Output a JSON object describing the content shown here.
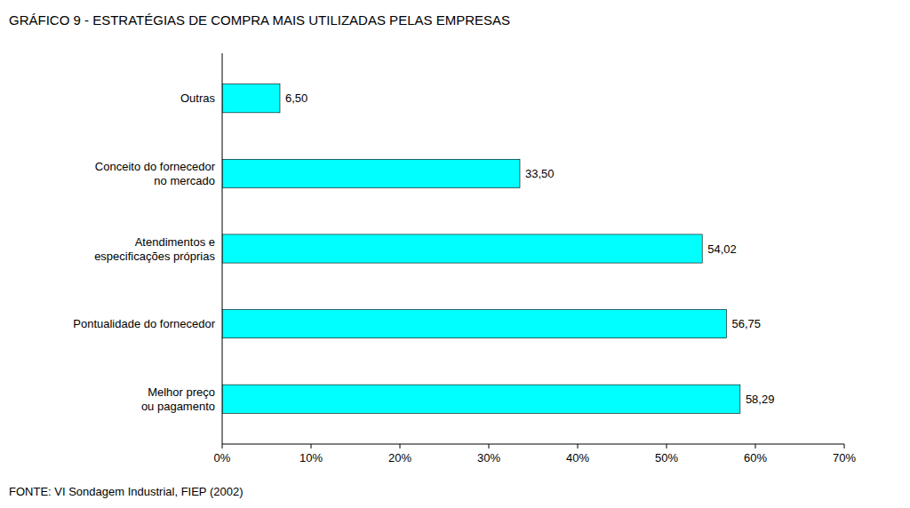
{
  "chart_data": {
    "type": "bar",
    "orientation": "horizontal",
    "title": "GRÁFICO 9 - ESTRATÉGIAS DE COMPRA MAIS UTILIZADAS PELAS EMPRESAS",
    "categories": [
      "Melhor preço\nou pagamento",
      "Pontualidade do fornecedor",
      "Atendimentos e\nespecificações próprias",
      "Conceito do fornecedor\nno mercado",
      "Outras"
    ],
    "values": [
      58.29,
      56.75,
      54.02,
      33.5,
      6.5
    ],
    "value_labels": [
      "58,29",
      "56,75",
      "54,02",
      "33,50",
      "6,50"
    ],
    "data_labels": true,
    "color": "#00FFFF",
    "xlim": [
      0,
      70
    ],
    "xticks": [
      {
        "value": 0,
        "label": "0%"
      },
      {
        "value": 10,
        "label": "10%"
      },
      {
        "value": 20,
        "label": "20%"
      },
      {
        "value": 30,
        "label": "30%"
      },
      {
        "value": 40,
        "label": "40%"
      },
      {
        "value": 50,
        "label": "50%"
      },
      {
        "value": 60,
        "label": "60%"
      },
      {
        "value": 70,
        "label": "70%"
      }
    ],
    "grid": false,
    "annotations": [
      "FONTE: VI Sondagem Industrial, FIEP (2002)"
    ]
  }
}
